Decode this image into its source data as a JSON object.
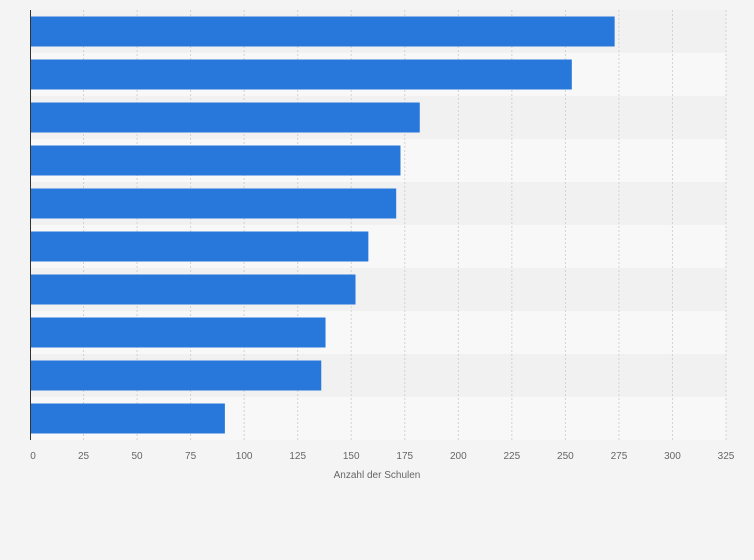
{
  "chart_data": {
    "type": "bar",
    "orientation": "horizontal",
    "title": "",
    "xlabel": "Anzahl der Schulen",
    "ylabel": "",
    "xlim": [
      0,
      325
    ],
    "x_ticks": [
      0,
      25,
      50,
      75,
      100,
      125,
      150,
      175,
      200,
      225,
      250,
      275,
      300,
      325
    ],
    "x_tick_labels": [
      "0",
      "25",
      "50",
      "75",
      "100",
      "125",
      "150",
      "175",
      "200",
      "225",
      "250",
      "275",
      "300",
      "325"
    ],
    "categories": [
      "",
      "",
      "",
      "",
      "",
      "",
      "",
      "",
      "",
      ""
    ],
    "values": [
      273,
      253,
      182,
      173,
      171,
      158,
      152,
      138,
      136,
      91
    ],
    "grid": "vertical",
    "legend": "none"
  },
  "colors": {
    "bar": "#2878dc",
    "background": "#f4f4f4",
    "band_light": "#f8f8f8",
    "band_dark": "#f1f1f1",
    "grid": "#d2d2d2",
    "axis": "#333333"
  }
}
